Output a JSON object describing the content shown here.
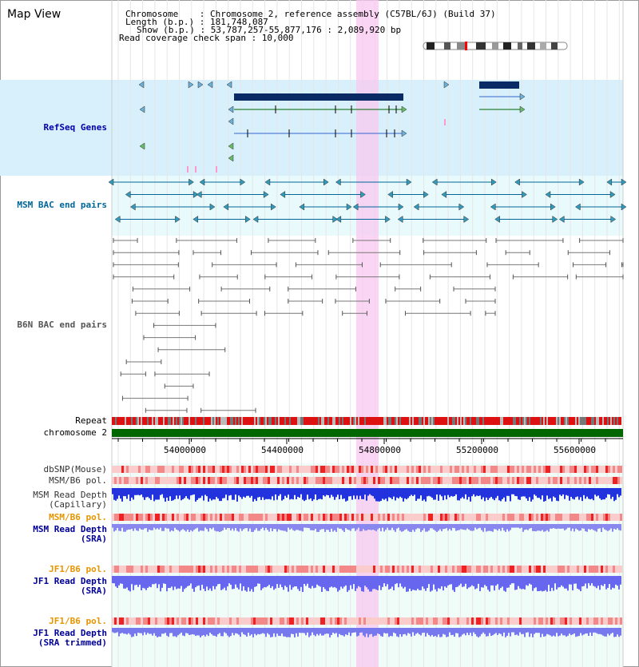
{
  "map_title": "Map View",
  "assembly": {
    "chromosome_line": "Chromosome    : Chromosome 2, reference assembly (C57BL/6J) (Build 37)",
    "length_line": "Length (b.p.) : 181,748,087",
    "show_line": "Show (b.p.) : 53,787,257-55,877,176 : 2,089,920 bp",
    "coverage_line": "Read coverage check span : 10,000"
  },
  "tracks": {
    "refseq": "RefSeq Genes",
    "msm_bac": "MSM BAC end pairs",
    "b6n_bac": "B6N BAC end pairs",
    "repeat": "Repeat",
    "chromosome": "chromosome 2",
    "dbsnp": "dbSNP(Mouse)",
    "msm_b6_pol": "MSM/B6 pol.",
    "msm_depth_cap": "MSM Read Depth\n(Capillary)",
    "msm_b6_pol_sra": "MSM/B6 pol.",
    "msm_depth_sra": "MSM Read Depth\n(SRA)",
    "jf1_b6_pol": "JF1/B6 pol.",
    "jf1_depth_sra": "JF1 Read Depth\n(SRA)",
    "jf1_b6_pol_trim": "JF1/B6 pol.",
    "jf1_depth_trim": "JF1 Read Depth\n(SRA trimmed)"
  },
  "axis": {
    "ticks": [
      "54000000",
      "54400000",
      "54800000",
      "55200000",
      "55600000"
    ]
  },
  "colors": {
    "refseq_label": "#0000aa",
    "msm_label": "#006699",
    "b6n_label": "#555555",
    "pol_orange": "#e69500",
    "depth_blue": "#000099",
    "highlight": "#f8c8f0"
  }
}
